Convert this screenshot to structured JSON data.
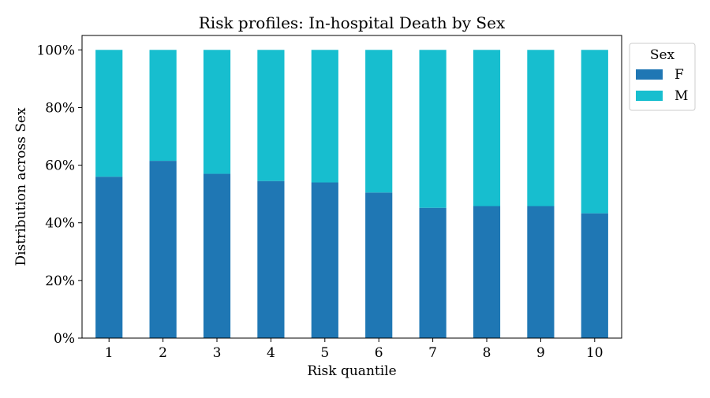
{
  "chart_data": {
    "type": "bar",
    "stacked": true,
    "title": "Risk profiles: In-hospital Death by Sex",
    "xlabel": "Risk quantile",
    "ylabel": "Distribution across Sex",
    "categories": [
      "1",
      "2",
      "3",
      "4",
      "5",
      "6",
      "7",
      "8",
      "9",
      "10"
    ],
    "ylim": [
      0,
      1.05
    ],
    "y_ticks": [
      "0%",
      "20%",
      "40%",
      "60%",
      "80%",
      "100%"
    ],
    "y_tick_values": [
      0,
      0.2,
      0.4,
      0.6,
      0.8,
      1.0
    ],
    "grid": false,
    "legend": {
      "title": "Sex",
      "placement": "upper-right-outside"
    },
    "series": [
      {
        "name": "F",
        "color": "#1f77b4",
        "values": [
          0.56,
          0.615,
          0.57,
          0.545,
          0.54,
          0.505,
          0.452,
          0.458,
          0.458,
          0.433
        ]
      },
      {
        "name": "M",
        "color": "#17becf",
        "values": [
          0.44,
          0.385,
          0.43,
          0.455,
          0.46,
          0.495,
          0.548,
          0.542,
          0.542,
          0.567
        ]
      }
    ]
  }
}
